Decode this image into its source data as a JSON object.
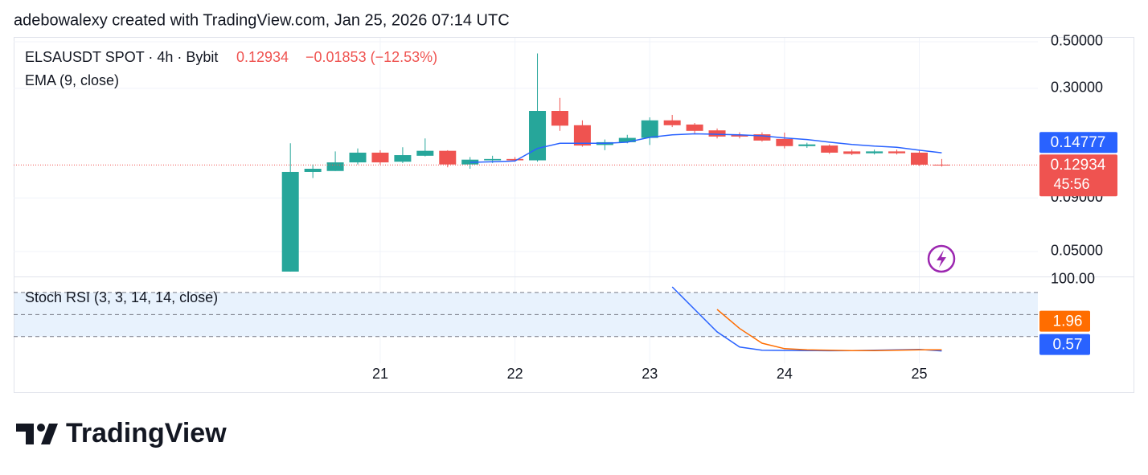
{
  "header": {
    "credit": "adebowalexy created with TradingView.com, Jan 25, 2026 07:14 UTC"
  },
  "footer": {
    "brand": "TradingView"
  },
  "chart_data": [
    {
      "type": "candlestick",
      "symbol_label": "ELSAUSDT SPOT · 4h · Bybit",
      "last_price": 0.12934,
      "change_label": "−0.01853 (−12.53%)",
      "countdown": "45:56",
      "up_color": "#26a69a",
      "down_color": "#ef5350",
      "log_scale": true,
      "x": [
        20.3333,
        20.5,
        20.6667,
        20.8333,
        21,
        21.1667,
        21.3333,
        21.5,
        21.6667,
        21.8333,
        22,
        22.1667,
        22.3333,
        22.5,
        22.6667,
        22.8333,
        23,
        23.1667,
        23.3333,
        23.5,
        23.6667,
        23.8333,
        24,
        24.1667,
        24.3333,
        24.5,
        24.6667,
        24.8333,
        25,
        25.1667
      ],
      "open": [
        0.0401,
        0.1197,
        0.121,
        0.133,
        0.148,
        0.134,
        0.143,
        0.151,
        0.13,
        0.136,
        0.138,
        0.136,
        0.234,
        0.2,
        0.161,
        0.166,
        0.174,
        0.211,
        0.2015,
        0.189,
        0.18,
        0.181,
        0.172,
        0.159,
        0.16,
        0.15,
        0.147,
        0.15,
        0.148,
        0.1297
      ],
      "high": [
        0.164,
        0.13,
        0.15,
        0.155,
        0.152,
        0.157,
        0.173,
        0.152,
        0.141,
        0.143,
        0.141,
        0.44,
        0.27,
        0.211,
        0.171,
        0.18,
        0.218,
        0.224,
        0.205,
        0.193,
        0.185,
        0.185,
        0.1845,
        0.165,
        0.162,
        0.153,
        0.153,
        0.153,
        0.151,
        0.138
      ],
      "low": [
        0.0401,
        0.112,
        0.121,
        0.13,
        0.13,
        0.132,
        0.142,
        0.126,
        0.124,
        0.132,
        0.134,
        0.134,
        0.188,
        0.158,
        0.152,
        0.164,
        0.161,
        0.196,
        0.183,
        0.173,
        0.173,
        0.167,
        0.155,
        0.156,
        0.146,
        0.144,
        0.145,
        0.145,
        0.128,
        0.127
      ],
      "close": [
        0.1197,
        0.124,
        0.133,
        0.148,
        0.133,
        0.144,
        0.151,
        0.13,
        0.137,
        0.138,
        0.136,
        0.234,
        0.199,
        0.16,
        0.166,
        0.174,
        0.211,
        0.2,
        0.188,
        0.1766,
        0.1766,
        0.169,
        0.159,
        0.162,
        0.148,
        0.146,
        0.15,
        0.147,
        0.1297,
        0.12934
      ],
      "series": [
        {
          "name": "EMA (9, close)",
          "color": "#2962ff",
          "values": [
            null,
            null,
            null,
            null,
            null,
            null,
            null,
            null,
            0.133,
            0.134,
            0.135,
            0.155,
            0.164,
            0.164,
            0.164,
            0.166,
            0.175,
            0.18,
            0.182,
            0.181,
            0.18,
            0.178,
            0.174,
            0.171,
            0.166,
            0.162,
            0.159,
            0.157,
            0.152,
            0.14777
          ]
        }
      ],
      "xlim": [
        18.28,
        25.88
      ],
      "ylim": [
        0.038,
        0.527
      ],
      "yticks": [
        {
          "value": 0.5,
          "label": "0.50000"
        },
        {
          "value": 0.3,
          "label": "0.30000"
        },
        {
          "value": 0.09,
          "label": "0.09000"
        },
        {
          "value": 0.05,
          "label": "0.05000"
        }
      ],
      "grid": true
    },
    {
      "type": "line",
      "title": "Stoch RSI (3, 3, 14, 14, close)",
      "x": [
        20.3333,
        20.5,
        20.6667,
        20.8333,
        21,
        21.1667,
        21.3333,
        21.5,
        21.6667,
        21.8333,
        22,
        22.1667,
        22.3333,
        22.5,
        22.6667,
        22.8333,
        23,
        23.1667,
        23.3333,
        23.5,
        23.6667,
        23.8333,
        24,
        24.1667,
        24.3333,
        24.5,
        24.6667,
        24.8333,
        25,
        25.1667
      ],
      "series": [
        {
          "color": "#2962ff",
          "values": [
            null,
            null,
            null,
            null,
            null,
            null,
            null,
            null,
            null,
            null,
            null,
            null,
            null,
            null,
            null,
            null,
            null,
            87.6,
            57,
            26.5,
            5.8,
            1.4,
            1.2,
            1.0,
            0.8,
            0.9,
            1.5,
            2.0,
            2.5,
            0.57
          ]
        },
        {
          "color": "#ff6d00",
          "values": [
            null,
            null,
            null,
            null,
            null,
            null,
            null,
            null,
            null,
            null,
            null,
            null,
            null,
            null,
            null,
            null,
            null,
            null,
            null,
            57,
            31,
            11,
            3.6,
            2.0,
            1.5,
            1.0,
            1.0,
            1.5,
            2.0,
            1.96
          ]
        }
      ],
      "band_levels": [
        20,
        50,
        80
      ],
      "band_color": "#e8f2fd",
      "xlim": [
        18.28,
        25.88
      ],
      "ylim": [
        -16.3,
        100.7
      ],
      "yticks": [
        {
          "value": 100,
          "label": "100.00"
        }
      ],
      "xticks": [
        21,
        22,
        23,
        24,
        25
      ]
    }
  ]
}
